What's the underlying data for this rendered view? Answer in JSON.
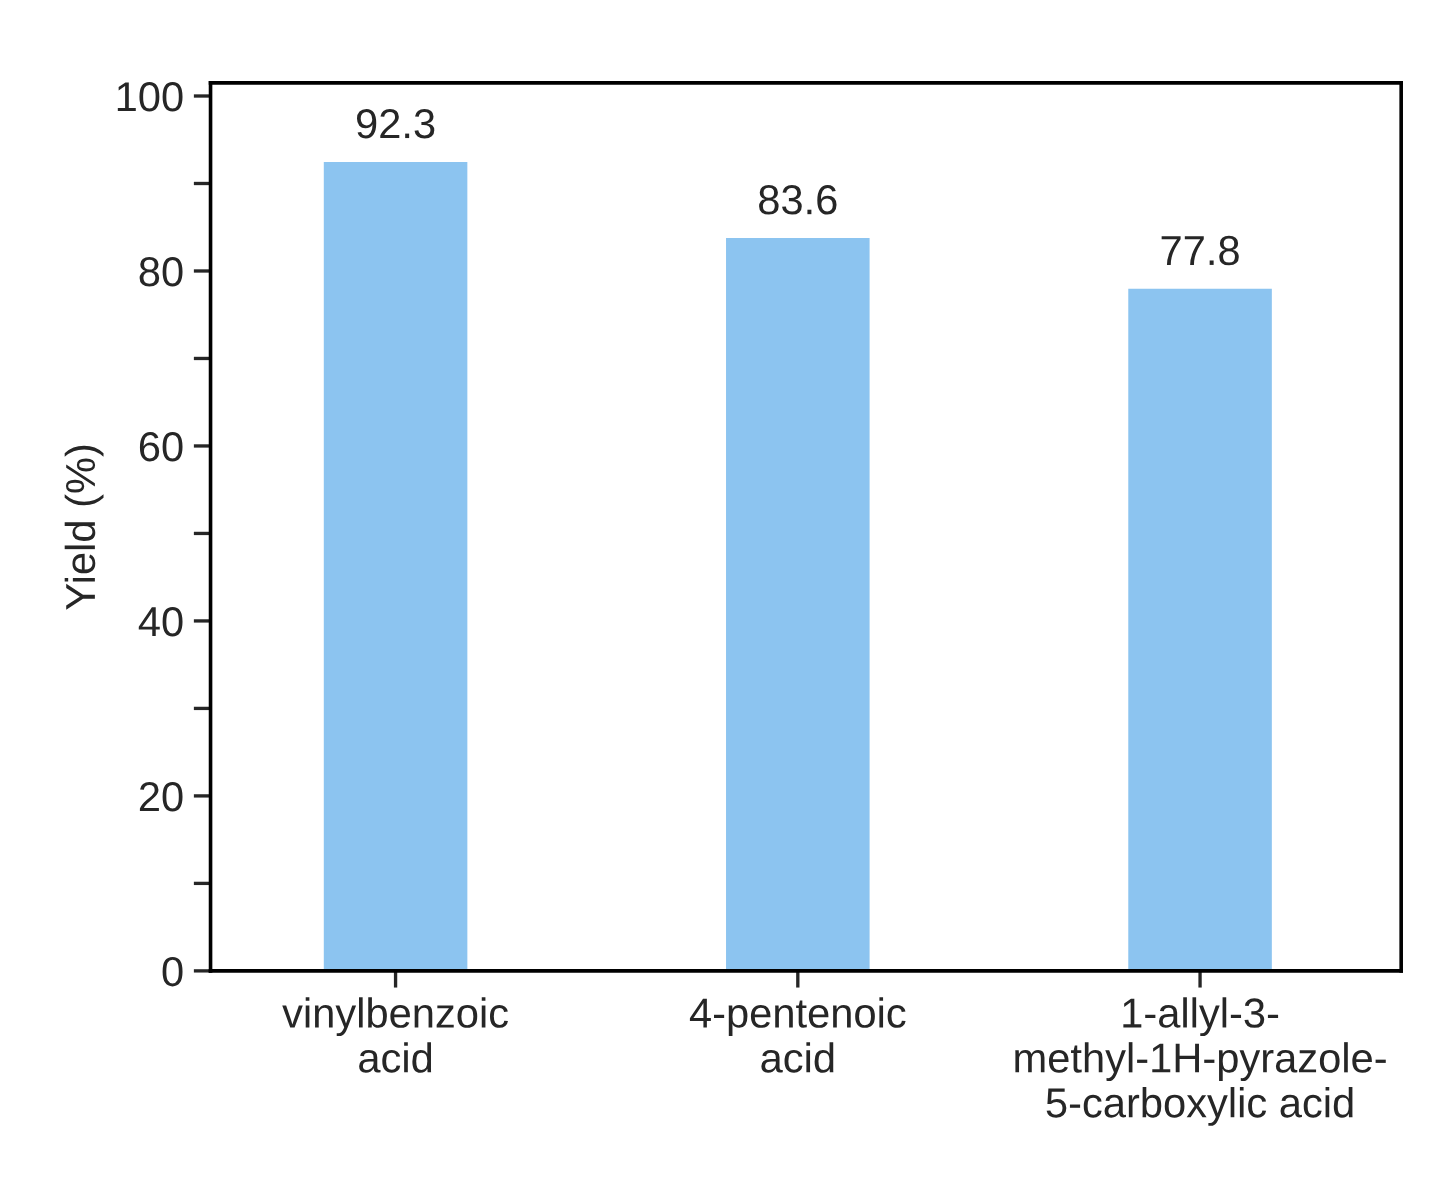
{
  "chart_data": {
    "type": "bar",
    "ylabel": "Yield (%)",
    "categories": [
      "vinylbenzoic\nacid",
      "4-pentenoic\nacid",
      "1-allyl-3-\nmethyl-1H-pyrazole-\n5-carboxylic acid"
    ],
    "values": [
      92.3,
      83.6,
      77.8
    ],
    "color": "#8cc4f0",
    "data_labels": true,
    "ylim": [
      0,
      101.5
    ],
    "yticks": [
      0,
      {
        "value": 10,
        "label": null
      },
      20,
      {
        "value": 30,
        "label": null
      },
      40,
      {
        "value": 50,
        "label": null
      },
      60,
      {
        "value": 70,
        "label": null
      },
      80,
      {
        "value": 90,
        "label": null
      },
      100
    ],
    "grid": false,
    "legend": false
  }
}
